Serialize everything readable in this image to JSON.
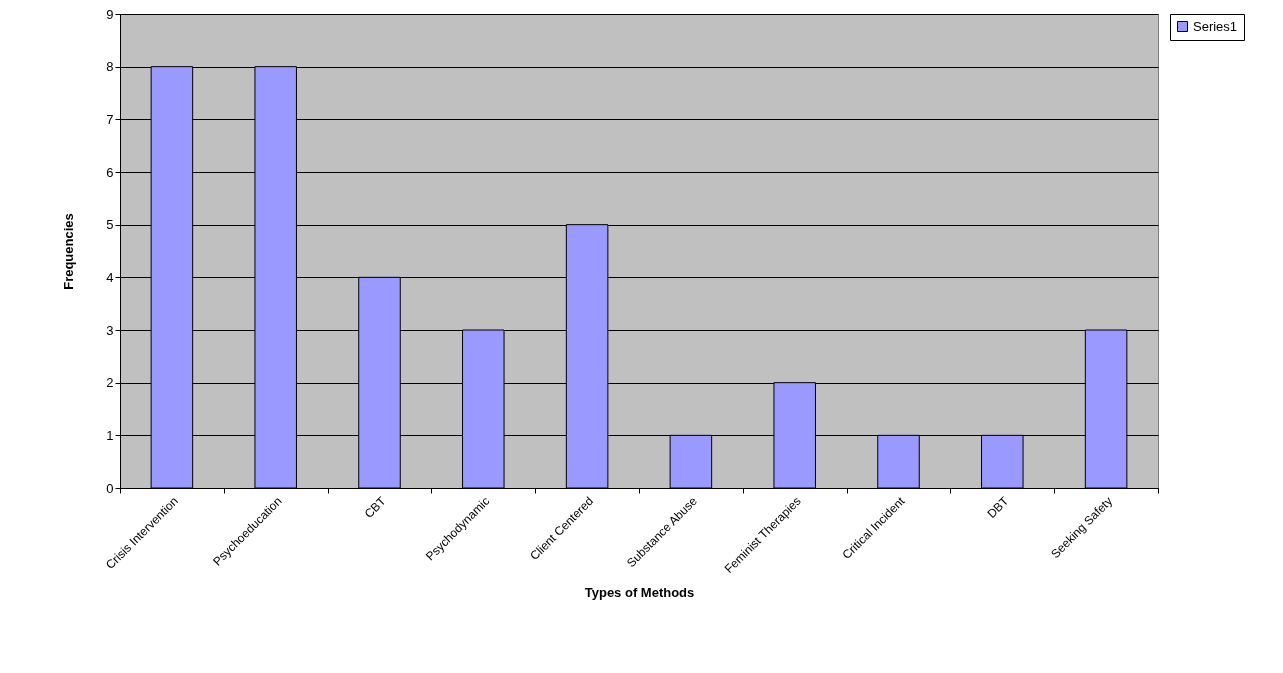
{
  "chart_data": {
    "type": "bar",
    "xlabel": "Types of Methods",
    "ylabel": "Frequencies",
    "categories": [
      "Crisis Intervention",
      "Psychoeducation",
      "CBT",
      "Psychodynamic",
      "Client Centered",
      "Substance Abuse",
      "Feminist Therapies",
      "Critical Incident",
      "DBT",
      "Seeking Safety"
    ],
    "series": [
      {
        "name": "Series1",
        "color": "#9999ff",
        "values": [
          8,
          8,
          4,
          3,
          5,
          1,
          2,
          1,
          1,
          3
        ]
      }
    ],
    "ylim": [
      0,
      9
    ],
    "yticks": [
      0,
      1,
      2,
      3,
      4,
      5,
      6,
      7,
      8,
      9
    ],
    "grid": "y",
    "legend": "right"
  }
}
